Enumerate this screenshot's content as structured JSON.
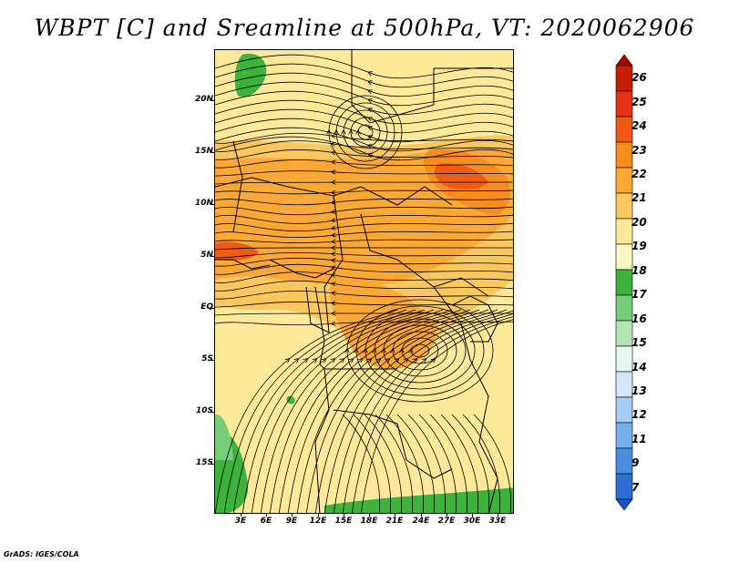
{
  "title": "WBPT [C] and Sreamline at 500hPa, VT: 2020062906",
  "footer": "GrADS: IGES/COLA",
  "map": {
    "lat_labels": [
      "20N",
      "15N",
      "10N",
      "5N",
      "EQ",
      "5S",
      "10S",
      "15S"
    ],
    "lon_labels": [
      "3E",
      "6E",
      "9E",
      "12E",
      "15E",
      "18E",
      "21E",
      "24E",
      "27E",
      "30E",
      "33E"
    ],
    "region": {
      "lon_range": [
        0,
        35
      ],
      "lat_range": [
        -20,
        24
      ]
    }
  },
  "colorbar": {
    "levels": [
      "26",
      "25",
      "24",
      "23",
      "22",
      "21",
      "20",
      "19",
      "18",
      "17",
      "16",
      "15",
      "14",
      "13",
      "12",
      "11",
      "9",
      "7"
    ],
    "colors": [
      "#a50000",
      "#c81e00",
      "#e43214",
      "#f05a14",
      "#f88c1e",
      "#fba836",
      "#fbc860",
      "#fde99a",
      "#fef6c4",
      "#3cb43c",
      "#78cd78",
      "#b4e6b4",
      "#e6f8f0",
      "#d2e8fa",
      "#a6cdf4",
      "#78aeea",
      "#4b8ede",
      "#2d6ed2",
      "#1e50c8"
    ]
  }
}
